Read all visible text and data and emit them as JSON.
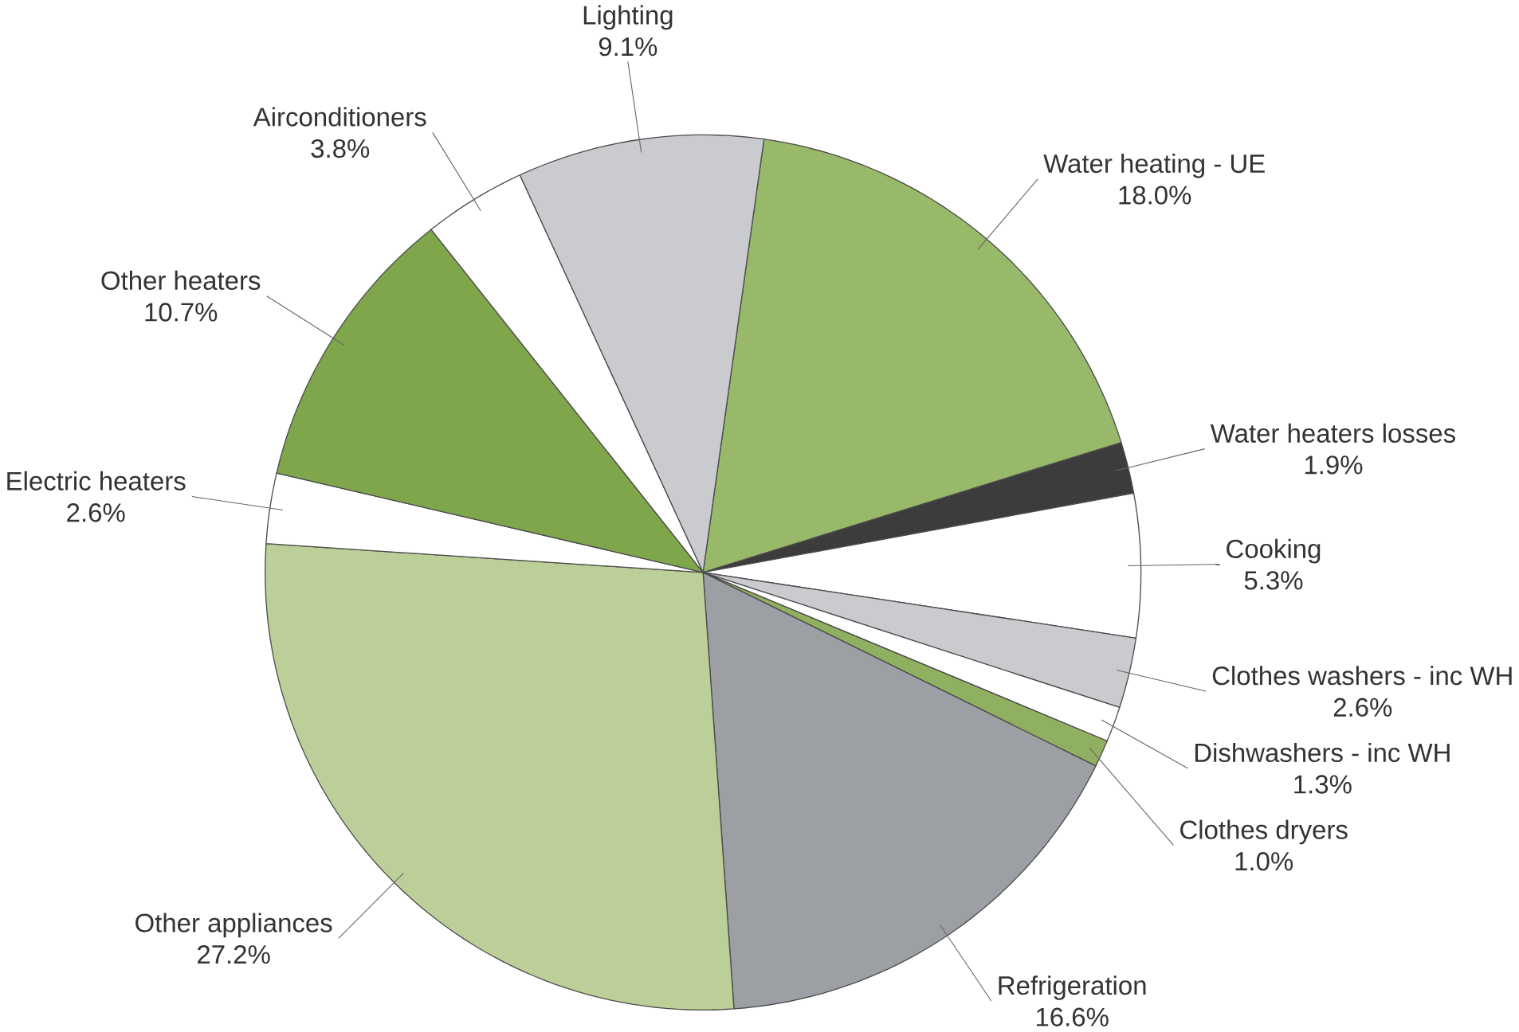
{
  "chart_data": {
    "type": "pie",
    "categories": [
      "Water heating - UE",
      "Water heaters losses",
      "Cooking",
      "Clothes washers - inc  WH",
      "Dishwashers - inc WH",
      "Clothes dryers",
      "Refrigeration",
      "Other appliances",
      "Electric heaters",
      "Other heaters",
      "Airconditioners",
      "Lighting"
    ],
    "values": [
      18.0,
      1.9,
      5.3,
      2.6,
      1.3,
      1.0,
      16.6,
      27.2,
      2.6,
      10.7,
      3.8,
      9.1
    ],
    "value_labels": [
      "18.0%",
      "1.9%",
      "5.3%",
      "2.6%",
      "1.3%",
      "1.0%",
      "16.6%",
      "27.2%",
      "2.6%",
      "10.7%",
      "3.8%",
      "9.1%"
    ],
    "colors": [
      "#98b86a",
      "#3c3c3c",
      "#ffffff",
      "#c9cbce",
      "#ffffff",
      "#8fb060",
      "#9c9fa3",
      "#bccf98",
      "#ffffff",
      "#80a64c",
      "#ffffff",
      "#c9cbce"
    ]
  }
}
